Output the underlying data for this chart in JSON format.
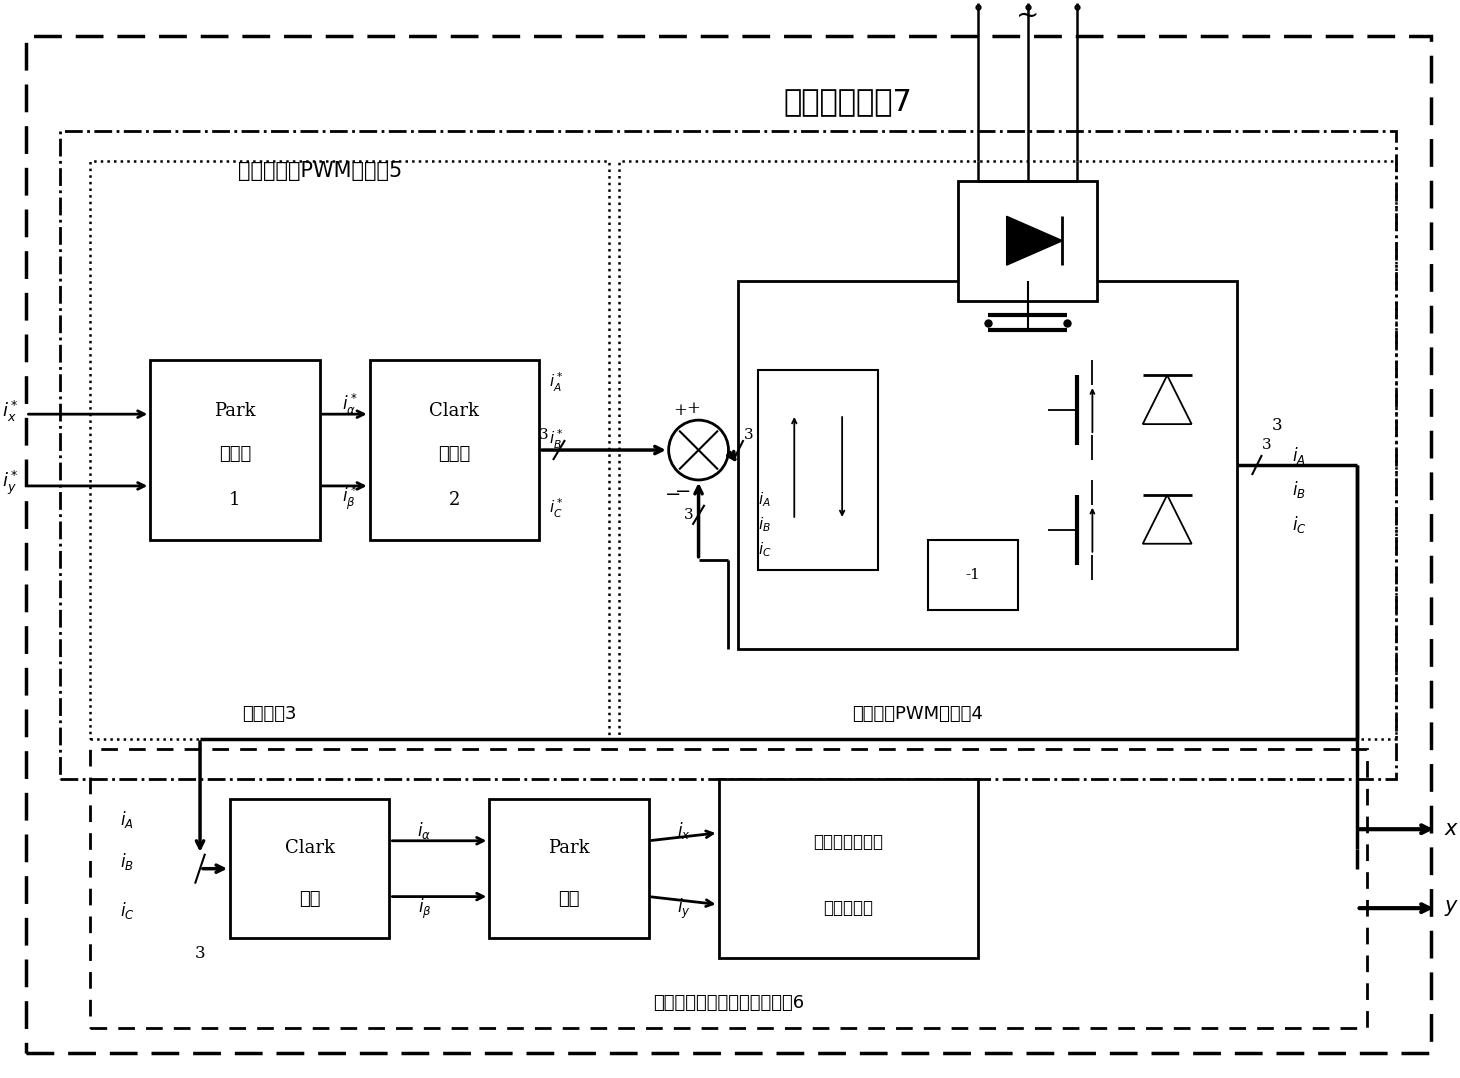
{
  "bg_color": "#ffffff",
  "black": "#000000",
  "title": "复合被控对象7",
  "label_pwm5": "扩展的滞环PWM逆变器5",
  "label_coord3": "坐标变换3",
  "label_hpwm4": "滞环电流PWM逆变器4",
  "label_motor6": "无轴承同步磁阻电机径向位置6",
  "park1_text": [
    "Park",
    "逆变换",
    "1"
  ],
  "clark2_text": [
    "Clark",
    "逆变换",
    "2"
  ],
  "clark_b_text": [
    "Clark",
    "变换"
  ],
  "park_b_text": [
    "Park",
    "变换"
  ],
  "dyn_text": [
    "径向位置控制的",
    "动力学模型"
  ]
}
